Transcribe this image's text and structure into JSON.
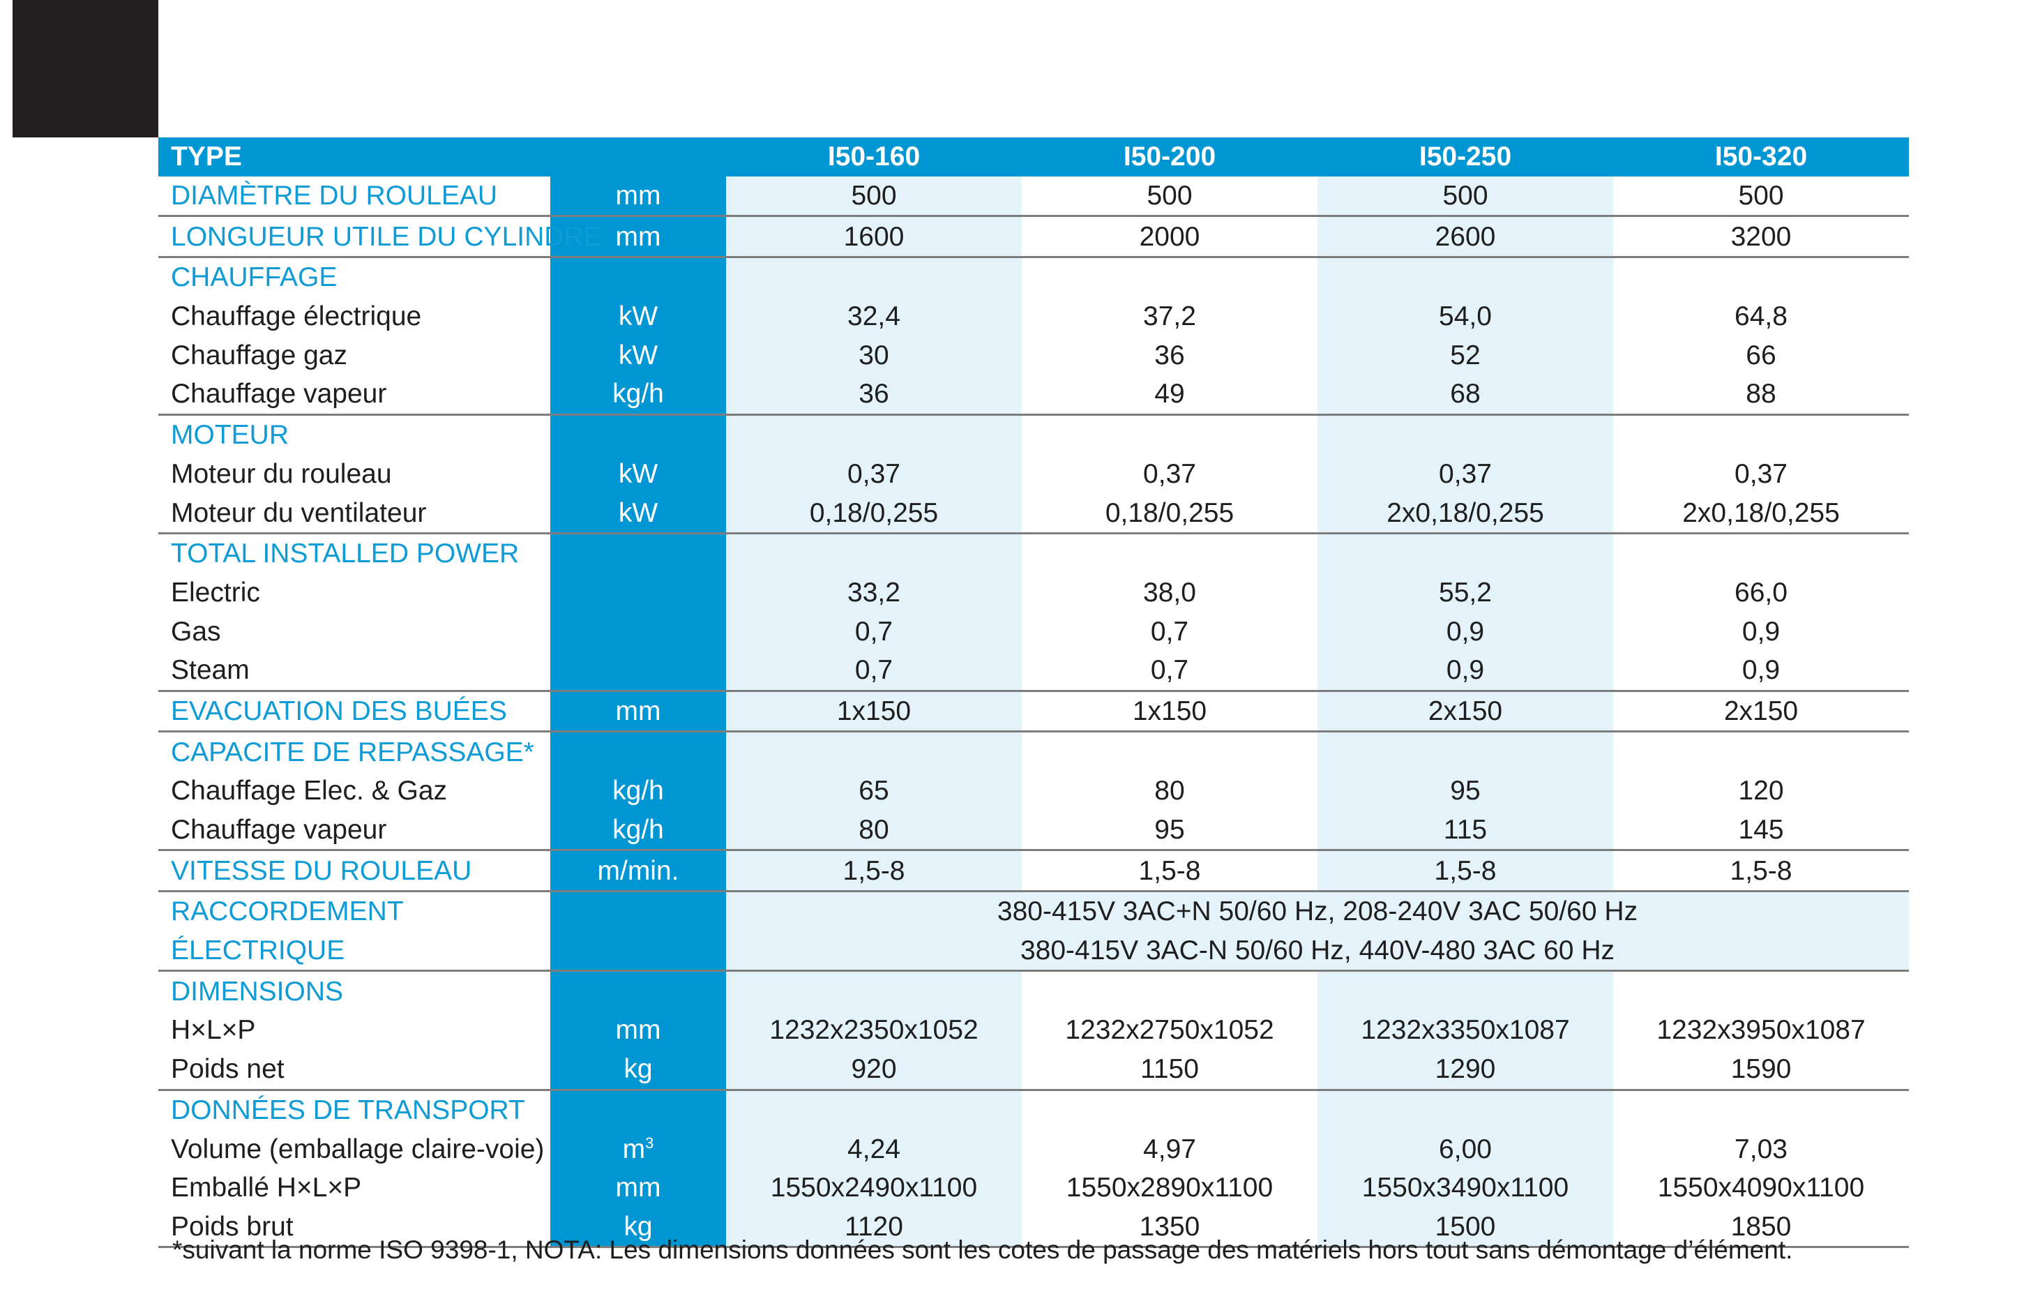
{
  "header": {
    "type_label": "TYPE",
    "models": [
      "I50-160",
      "I50-200",
      "I50-250",
      "I50-320"
    ]
  },
  "rows": {
    "diametre": {
      "label": "DIAMÈTRE DU ROULEAU",
      "unit": "mm",
      "values": [
        "500",
        "500",
        "500",
        "500"
      ]
    },
    "longueur": {
      "label": "LONGUEUR UTILE DU CYLINDRE",
      "unit": "mm",
      "values": [
        "1600",
        "2000",
        "2600",
        "3200"
      ]
    },
    "chauffage_title": "CHAUFFAGE",
    "chauffage_elec": {
      "label": "Chauffage électrique",
      "unit": "kW",
      "values": [
        "32,4",
        "37,2",
        "54,0",
        "64,8"
      ]
    },
    "chauffage_gaz": {
      "label": "Chauffage gaz",
      "unit": "kW",
      "values": [
        "30",
        "36",
        "52",
        "66"
      ]
    },
    "chauffage_vapeur": {
      "label": "Chauffage vapeur",
      "unit": "kg/h",
      "values": [
        "36",
        "49",
        "68",
        "88"
      ]
    },
    "moteur_title": "MOTEUR",
    "moteur_rouleau": {
      "label": "Moteur du rouleau",
      "unit": "kW",
      "values": [
        "0,37",
        "0,37",
        "0,37",
        "0,37"
      ]
    },
    "moteur_ventilateur": {
      "label": "Moteur du ventilateur",
      "unit": "kW",
      "values": [
        "0,18/0,255",
        "0,18/0,255",
        "2x0,18/0,255",
        "2x0,18/0,255"
      ]
    },
    "total_title": "TOTAL INSTALLED POWER",
    "total_electric": {
      "label": "Electric",
      "values": [
        "33,2",
        "38,0",
        "55,2",
        "66,0"
      ]
    },
    "total_gas": {
      "label": "Gas",
      "values": [
        "0,7",
        "0,7",
        "0,9",
        "0,9"
      ]
    },
    "total_steam": {
      "label": "Steam",
      "values": [
        "0,7",
        "0,7",
        "0,9",
        "0,9"
      ]
    },
    "evacuation": {
      "label": "EVACUATION DES BUÉES",
      "unit": "mm",
      "values": [
        "1x150",
        "1x150",
        "2x150",
        "2x150"
      ]
    },
    "capacite_title": "CAPACITE DE REPASSAGE*",
    "capacite_elec_gaz": {
      "label": "Chauffage Elec. & Gaz",
      "unit": "kg/h",
      "values": [
        "65",
        "80",
        "95",
        "120"
      ]
    },
    "capacite_vapeur": {
      "label": "Chauffage vapeur",
      "unit": "kg/h",
      "values": [
        "80",
        "95",
        "115",
        "145"
      ]
    },
    "vitesse": {
      "label": "VITESSE DU ROULEAU",
      "unit": "m/min.",
      "values": [
        "1,5-8",
        "1,5-8",
        "1,5-8",
        "1,5-8"
      ]
    },
    "raccordement": {
      "label_line1": "RACCORDEMENT",
      "label_line2": "ÉLECTRIQUE",
      "value_line1": "380-415V 3AC+N 50/60 Hz, 208-240V 3AC 50/60 Hz",
      "value_line2": "380-415V 3AC-N 50/60 Hz, 440V-480 3AC 60 Hz"
    },
    "dimensions_title": "DIMENSIONS",
    "hlp": {
      "label": "H×L×P",
      "unit": "mm",
      "values": [
        "1232x2350x1052",
        "1232x2750x1052",
        "1232x3350x1087",
        "1232x3950x1087"
      ]
    },
    "poids_net": {
      "label": "Poids net",
      "unit": "kg",
      "values": [
        "920",
        "1150",
        "1290",
        "1590"
      ]
    },
    "transport_title": "DONNÉES DE TRANSPORT",
    "volume": {
      "label": "Volume (emballage claire-voie)",
      "unit_base": "m",
      "unit_exp": "3",
      "values": [
        "4,24",
        "4,97",
        "6,00",
        "7,03"
      ]
    },
    "emballe": {
      "label": "Emballé H×L×P",
      "unit": "mm",
      "values": [
        "1550x2490x1100",
        "1550x2890x1100",
        "1550x3490x1100",
        "1550x4090x1100"
      ]
    },
    "poids_brut": {
      "label": "Poids brut",
      "unit": "kg",
      "values": [
        "1120",
        "1350",
        "1500",
        "1850"
      ]
    }
  },
  "footnote": "*suivant la norme ISO 9398-1, NOTA: Les dimensions données sont les cotes de passage des matériels hors tout sans démontage d’élément.",
  "colors": {
    "accent_blue": "#0096d4",
    "light_blue": "#e4f3fa",
    "section_text": "#0e9bd6",
    "corner_block": "#231f20"
  }
}
